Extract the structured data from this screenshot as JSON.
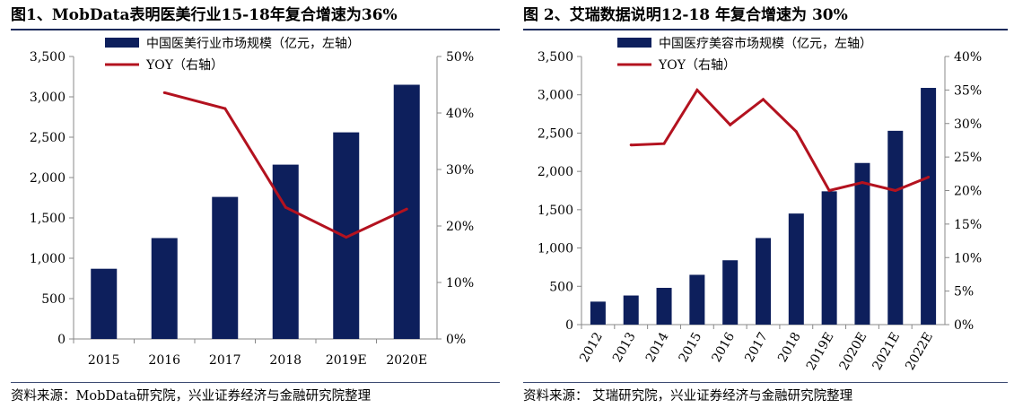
{
  "charts": [
    {
      "figure_title": "图1、MobData表明医美行业15-18年复合增速为36%",
      "source": "资料来源：MobData研究院，兴业证券经济与金融研究院整理"
    },
    {
      "figure_title": "图 2、艾瑞数据说明12-18 年复合增速为 30%",
      "source": "资料来源：  艾瑞研究院，兴业证券经济与金融研究院整理"
    }
  ],
  "colors": {
    "bar": "#0d1f5c",
    "line": "#b3121f",
    "rule": "#1b2a5a"
  },
  "chart_data": [
    {
      "type": "bar",
      "categories": [
        "2015",
        "2016",
        "2017",
        "2018",
        "2019E",
        "2020E"
      ],
      "series": [
        {
          "name": "中国医美行业市场规模（亿元，左轴）",
          "type": "bar",
          "axis": "left",
          "values": [
            870,
            1250,
            1760,
            2160,
            2560,
            3150
          ]
        },
        {
          "name": "YOY（右轴）",
          "type": "line",
          "axis": "right",
          "values": [
            null,
            0.436,
            0.408,
            0.233,
            0.18,
            0.23
          ]
        }
      ],
      "ylim_left": [
        0,
        3500
      ],
      "yticks_left": [
        "0",
        "500",
        "1,000",
        "1,500",
        "2,000",
        "2,500",
        "3,000",
        "3,500"
      ],
      "ylim_right": [
        0,
        0.5
      ],
      "yticks_right": [
        "0%",
        "10%",
        "20%",
        "30%",
        "40%",
        "50%"
      ],
      "legend_position": "top-center",
      "grid": false
    },
    {
      "type": "bar",
      "categories": [
        "2012",
        "2013",
        "2014",
        "2015",
        "2016",
        "2017",
        "2018",
        "2019E",
        "2020E",
        "2021E",
        "2022E"
      ],
      "series": [
        {
          "name": "中国医疗美容市场规模（亿元，左轴）",
          "type": "bar",
          "axis": "left",
          "values": [
            300,
            380,
            480,
            650,
            840,
            1130,
            1450,
            1740,
            2110,
            2530,
            3090
          ]
        },
        {
          "name": "YOY（右轴）",
          "type": "line",
          "axis": "right",
          "values": [
            null,
            0.268,
            0.27,
            0.35,
            0.298,
            0.336,
            0.288,
            0.2,
            0.212,
            0.2,
            0.22
          ]
        }
      ],
      "ylim_left": [
        0,
        3500
      ],
      "yticks_left": [
        "0",
        "500",
        "1,000",
        "1,500",
        "2,000",
        "2,500",
        "3,000",
        "3,500"
      ],
      "ylim_right": [
        0,
        0.4
      ],
      "yticks_right": [
        "0%",
        "5%",
        "10%",
        "15%",
        "20%",
        "25%",
        "30%",
        "35%",
        "40%"
      ],
      "legend_position": "top-center",
      "grid": false
    }
  ]
}
